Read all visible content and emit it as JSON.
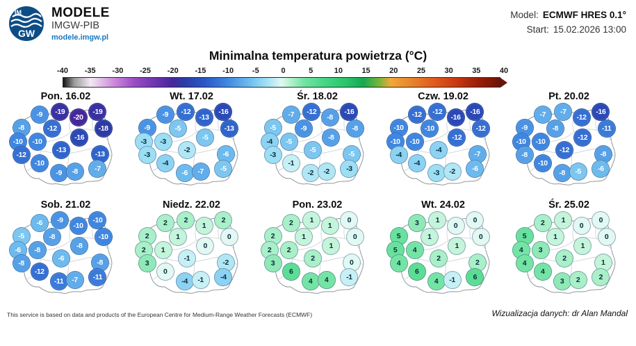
{
  "header": {
    "brand_title": "MODELE",
    "brand_subtitle": "IMGW-PIB",
    "brand_url": "modele.imgw.pl",
    "logo_top": "IM",
    "logo_bottom": "GW",
    "model_label": "Model:",
    "model_value": "ECMWF HRES 0.1°",
    "start_label": "Start:",
    "start_value": "15.02.2026 13:00"
  },
  "title": "Minimalna temperatura powietrza (°C)",
  "chart_data": {
    "type": "heatmap",
    "title": "Minimalna temperatura powietrza (°C)",
    "units": "°C",
    "colorbar": {
      "range": [
        -40,
        40
      ],
      "ticks": [
        -40,
        -35,
        -30,
        -25,
        -20,
        -15,
        -10,
        -5,
        0,
        5,
        10,
        15,
        20,
        25,
        30,
        35,
        40
      ],
      "stops": [
        [
          -40,
          "#141414"
        ],
        [
          -38,
          "#9a9a9a"
        ],
        [
          -35,
          "#f2e8f4"
        ],
        [
          -31,
          "#cf8fdd"
        ],
        [
          -27,
          "#9b4cc4"
        ],
        [
          -23,
          "#6b34b0"
        ],
        [
          -20,
          "#46279c"
        ],
        [
          -18,
          "#2c3aa6"
        ],
        [
          -14,
          "#2a58c6"
        ],
        [
          -10,
          "#3f86e0"
        ],
        [
          -6,
          "#6cbaee"
        ],
        [
          -3,
          "#9cdef4"
        ],
        [
          -1,
          "#c6f0f4"
        ],
        [
          0,
          "#e2f8f2"
        ],
        [
          1,
          "#c4f4da"
        ],
        [
          4,
          "#74e4a4"
        ],
        [
          8,
          "#44d684"
        ],
        [
          12,
          "#28c468"
        ],
        [
          15,
          "#17a852"
        ],
        [
          18,
          "#7db43a"
        ],
        [
          20,
          "#f0a83a"
        ],
        [
          24,
          "#e8822a"
        ],
        [
          28,
          "#e05a1e"
        ],
        [
          32,
          "#c83812"
        ],
        [
          36,
          "#9a1e0a"
        ],
        [
          40,
          "#6e1205"
        ]
      ]
    },
    "positions": [
      [
        11,
        26
      ],
      [
        27,
        12
      ],
      [
        45,
        9
      ],
      [
        61,
        15
      ],
      [
        78,
        9
      ],
      [
        83,
        27
      ],
      [
        8,
        41
      ],
      [
        38,
        27
      ],
      [
        25,
        41
      ],
      [
        62,
        37
      ],
      [
        11,
        56
      ],
      [
        46,
        50
      ],
      [
        80,
        55
      ],
      [
        27,
        65
      ],
      [
        44,
        75
      ],
      [
        58,
        74
      ],
      [
        78,
        71
      ]
    ],
    "panels": [
      {
        "label": "Pon. 16.02",
        "values": [
          -8,
          -9,
          -19,
          -20,
          -19,
          -18,
          -10,
          -12,
          -10,
          -16,
          -12,
          -13,
          -13,
          -10,
          -9,
          -8,
          -7
        ]
      },
      {
        "label": "Wt. 17.02",
        "values": [
          -9,
          -9,
          -12,
          -13,
          -16,
          -13,
          -3,
          -5,
          -3,
          -5,
          -3,
          -2,
          -6,
          -4,
          -6,
          -7,
          -5
        ]
      },
      {
        "label": "Śr. 18.02",
        "values": [
          -5,
          -7,
          -12,
          -8,
          -16,
          -8,
          -4,
          -9,
          -5,
          -8,
          -3,
          -5,
          -5,
          -1,
          -2,
          -2,
          -3
        ]
      },
      {
        "label": "Czw. 19.02",
        "values": [
          -10,
          -12,
          -12,
          -16,
          -16,
          -12,
          -10,
          -10,
          -10,
          -12,
          -4,
          -4,
          -7,
          -4,
          -3,
          -2,
          -6
        ]
      },
      {
        "label": "Pt. 20.02",
        "values": [
          -9,
          -7,
          -7,
          -12,
          -16,
          -11,
          -10,
          -8,
          -10,
          -12,
          -8,
          -12,
          -8,
          -10,
          -8,
          -5,
          -6
        ]
      },
      {
        "label": "Sob. 21.02",
        "values": [
          -5,
          -6,
          -9,
          -10,
          -10,
          -10,
          -6,
          -8,
          -8,
          -8,
          -8,
          -6,
          -8,
          -12,
          -11,
          -7,
          -11
        ]
      },
      {
        "label": "Niedz. 22.02",
        "values": [
          2,
          2,
          2,
          1,
          2,
          0,
          2,
          1,
          1,
          0,
          3,
          -1,
          -2,
          0,
          -4,
          -1,
          -4
        ]
      },
      {
        "label": "Pon. 23.02",
        "values": [
          2,
          2,
          1,
          1,
          0,
          0,
          2,
          1,
          2,
          1,
          3,
          2,
          0,
          6,
          4,
          4,
          -1
        ]
      },
      {
        "label": "Wt. 24.02",
        "values": [
          5,
          3,
          1,
          0,
          0,
          0,
          5,
          1,
          4,
          1,
          4,
          2,
          2,
          6,
          4,
          -1,
          6
        ]
      },
      {
        "label": "Śr. 25.02",
        "values": [
          5,
          2,
          1,
          0,
          0,
          0,
          4,
          1,
          3,
          1,
          4,
          2,
          1,
          4,
          3,
          2,
          2
        ]
      }
    ],
    "text_color_rule": {
      "white_text_max": -5
    }
  },
  "footer": {
    "attribution": "This service is based on data and products of the European Centre for Medium-Range Weather Forecasts (ECMWF)",
    "credit": "Wizualizacja danych: dr Alan Mandal"
  }
}
